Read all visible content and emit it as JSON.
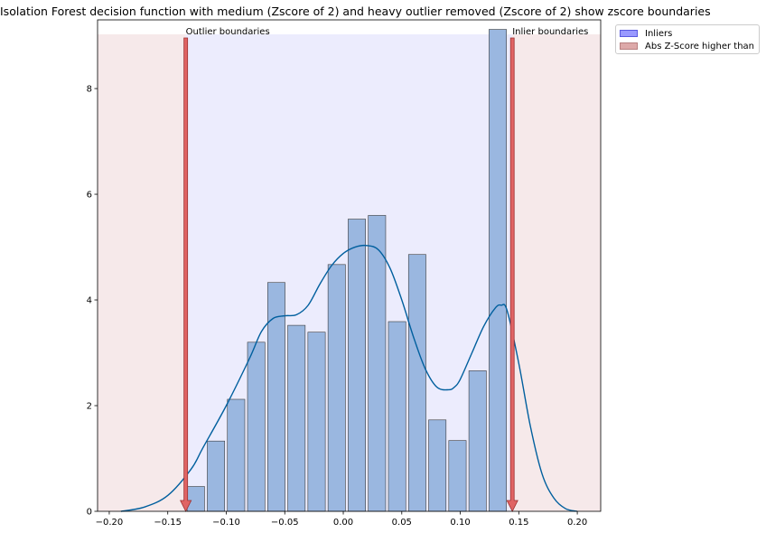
{
  "chart_data": {
    "type": "bar",
    "title": "Isolation Forest decision function with medium (Zscore of 2) and heavy outlier removed (Zscore of 2) show zscore boundaries",
    "xlim": [
      -0.21,
      0.22
    ],
    "ylim": [
      0,
      9.3
    ],
    "x_ticks": [
      -0.2,
      -0.15,
      -0.1,
      -0.05,
      0.0,
      0.05,
      0.1,
      0.15,
      0.2
    ],
    "x_tick_labels": [
      "−0.20",
      "−0.15",
      "−0.10",
      "−0.05",
      "0.00",
      "0.05",
      "0.10",
      "0.15",
      "0.20"
    ],
    "y_ticks": [
      0,
      2,
      4,
      6,
      8
    ],
    "y_tick_labels": [
      "0",
      "2",
      "4",
      "6",
      "8"
    ],
    "bins": {
      "edges": [
        -0.1346,
        -0.1174,
        -0.1002,
        -0.083,
        -0.0658,
        -0.0486,
        -0.0314,
        -0.0142,
        0.003,
        0.0202,
        0.0374,
        0.0546,
        0.0718,
        0.089,
        0.1062,
        0.1234,
        0.1406
      ],
      "values": [
        0.47,
        1.33,
        2.12,
        3.2,
        4.33,
        3.52,
        3.39,
        4.67,
        5.53,
        5.6,
        3.59,
        4.86,
        1.73,
        1.34,
        2.66,
        9.12
      ]
    },
    "kde": {
      "x": [
        -0.19,
        -0.17,
        -0.15,
        -0.13,
        -0.12,
        -0.1,
        -0.08,
        -0.07,
        -0.06,
        -0.05,
        -0.04,
        -0.03,
        -0.02,
        -0.01,
        0.0,
        0.01,
        0.02,
        0.03,
        0.04,
        0.05,
        0.06,
        0.07,
        0.08,
        0.09,
        0.095,
        0.1,
        0.11,
        0.12,
        0.13,
        0.135,
        0.14,
        0.15,
        0.16,
        0.17,
        0.18,
        0.19,
        0.2
      ],
      "y": [
        0.0,
        0.08,
        0.3,
        0.8,
        1.2,
        2.0,
        2.9,
        3.4,
        3.65,
        3.7,
        3.72,
        3.9,
        4.3,
        4.65,
        4.88,
        5.0,
        5.03,
        4.95,
        4.6,
        4.0,
        3.3,
        2.7,
        2.35,
        2.3,
        2.35,
        2.5,
        3.0,
        3.5,
        3.85,
        3.9,
        3.8,
        2.8,
        1.6,
        0.7,
        0.25,
        0.05,
        0.0
      ]
    },
    "inlier_region": [
      -0.1346,
      0.1445
    ],
    "outlier_boundary_x": -0.1346,
    "inlier_boundary_x": 0.1445,
    "annotations": [
      "Outlier boundaries",
      "Inlier boundaries"
    ],
    "legend": {
      "placement": "outside-top-right",
      "entries": [
        {
          "label": "Inliers",
          "color": "#9999ff"
        },
        {
          "label": "Abs Z-Score higher than",
          "color": "#dda9a9"
        }
      ]
    },
    "colors": {
      "bar_fill": "#9ab7e0",
      "bar_edge": "#3c3c3c",
      "kde_line": "#005f9e",
      "inlier_shade": "#ececfd",
      "outlier_shade": "#f6e9ea",
      "arrow_fill": "#e06464",
      "arrow_edge": "#9c2f2f"
    }
  }
}
